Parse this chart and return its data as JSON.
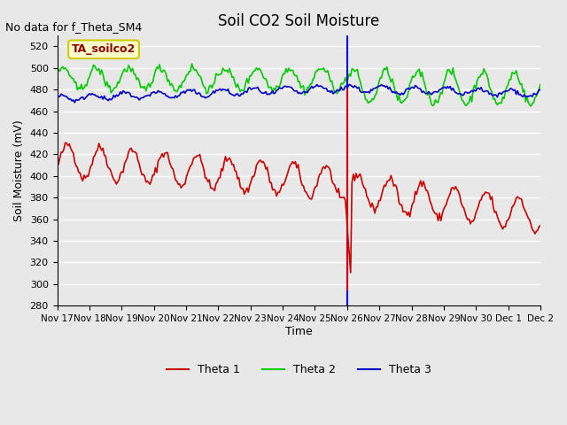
{
  "title": "Soil CO2 Soil Moisture",
  "no_data_text": "No data for f_Theta_SM4",
  "ylabel": "Soil Moisture (mV)",
  "xlabel": "Time",
  "annotation_box": "TA_soilco2",
  "ylim": [
    280,
    530
  ],
  "yticks": [
    280,
    300,
    320,
    340,
    360,
    380,
    400,
    420,
    440,
    460,
    480,
    500,
    520
  ],
  "xtick_labels": [
    "Nov 17",
    "Nov 18",
    "Nov 19",
    "Nov 20",
    "Nov 21",
    "Nov 22",
    "Nov 23",
    "Nov 24",
    "Nov 25",
    "Nov 26",
    "Nov 27",
    "Nov 28",
    "Nov 29",
    "Nov 30",
    "Dec 1",
    "Dec 2"
  ],
  "bg_color": "#e8e8e8",
  "plot_bg_color": "#e8e8e8",
  "grid_color": "#ffffff",
  "line_colors": {
    "theta1": "#cc0000",
    "theta2": "#00cc00",
    "theta3": "#0000cc"
  },
  "legend_labels": [
    "Theta 1",
    "Theta 2",
    "Theta 3"
  ],
  "vline_x": 9,
  "vline_color_red": "#cc0000",
  "vline_color_blue": "#0000cc",
  "annotation_box_color": "#ffffcc",
  "annotation_box_border": "#cccc00"
}
